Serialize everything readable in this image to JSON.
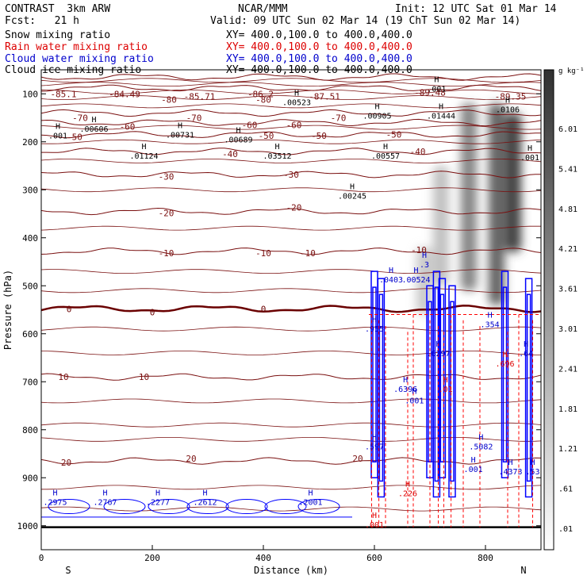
{
  "header": {
    "model": "CONTRAST  3km ARW",
    "org": "NCAR/MMM",
    "init": "Init: 12 UTC Sat 01 Mar 14",
    "fcst": "Fcst:   21 h",
    "valid": "Valid: 09 UTC Sun 02 Mar 14 (19 ChT Sun 02 Mar 14)",
    "fields": [
      {
        "name": "Snow mixing ratio",
        "xy": "XY= 400.0,100.0 to 400.0,400.0",
        "color": "#000000"
      },
      {
        "name": "Rain water mixing ratio",
        "xy": "XY= 400.0,100.0 to 400.0,400.0",
        "color": "#dd0000"
      },
      {
        "name": "Cloud water mixing ratio",
        "xy": "XY= 400.0,100.0 to 400.0,400.0",
        "color": "#0000cc"
      },
      {
        "name": "Cloud ice mixing ratio",
        "xy": "XY= 400.0,100.0 to 400.0,400.0",
        "color": "#000000"
      }
    ]
  },
  "chart_data": {
    "type": "heatmap",
    "xlabel": "Distance (km)",
    "ylabel": "Pressure (hPa)",
    "xlim": [
      0,
      900
    ],
    "ylim": [
      1050,
      50
    ],
    "x_ticks": [
      0,
      200,
      400,
      600,
      800
    ],
    "y_ticks": [
      100,
      200,
      300,
      400,
      500,
      600,
      700,
      800,
      900,
      1000
    ],
    "x_end_labels": {
      "left": "S",
      "right": "N"
    },
    "colorbar": {
      "unit": "g kg⁻¹",
      "ticks": [
        "6.01",
        "5.41",
        "4.81",
        "4.21",
        "3.61",
        "3.01",
        "2.41",
        "1.81",
        "1.21",
        ".61",
        ".01"
      ]
    },
    "temperature_contours": {
      "color": "#7a1010",
      "zero_color": "#6a0000",
      "levels": [
        {
          "t": -85,
          "p": 65
        },
        {
          "t": -80,
          "p": 88
        },
        {
          "t": -70,
          "p": 140
        },
        {
          "t": -60,
          "p": 160
        },
        {
          "t": -50,
          "p": 185
        },
        {
          "t": -40,
          "p": 220
        },
        {
          "t": -30,
          "p": 268
        },
        {
          "t": -20,
          "p": 345
        },
        {
          "t": -10,
          "p": 428
        },
        {
          "t": 0,
          "p": 548
        },
        {
          "t": 10,
          "p": 690
        },
        {
          "t": 20,
          "p": 865
        }
      ],
      "labels": [
        {
          "text": "-85.1",
          "x": 40,
          "p": 100
        },
        {
          "text": "-84.49",
          "x": 150,
          "p": 100
        },
        {
          "text": "-85.71",
          "x": 285,
          "p": 105
        },
        {
          "text": "-86.2",
          "x": 395,
          "p": 100
        },
        {
          "text": "-87.51",
          "x": 510,
          "p": 105
        },
        {
          "text": "-89.48",
          "x": 700,
          "p": 97
        },
        {
          "text": "-89.35",
          "x": 845,
          "p": 105
        },
        {
          "text": "-80",
          "x": 230,
          "p": 112
        },
        {
          "text": "-80",
          "x": 400,
          "p": 112
        },
        {
          "text": "-70",
          "x": 70,
          "p": 150
        },
        {
          "text": "-70",
          "x": 275,
          "p": 150
        },
        {
          "text": "-70",
          "x": 535,
          "p": 150
        },
        {
          "text": "-60",
          "x": 155,
          "p": 168
        },
        {
          "text": "-60",
          "x": 375,
          "p": 165
        },
        {
          "text": "-60",
          "x": 455,
          "p": 165
        },
        {
          "text": "-50",
          "x": 60,
          "p": 190
        },
        {
          "text": "-50",
          "x": 405,
          "p": 187
        },
        {
          "text": "-50",
          "x": 500,
          "p": 187
        },
        {
          "text": "-50",
          "x": 635,
          "p": 185
        },
        {
          "text": "-40",
          "x": 340,
          "p": 225
        },
        {
          "text": "-40",
          "x": 678,
          "p": 220
        },
        {
          "text": "-30",
          "x": 225,
          "p": 272
        },
        {
          "text": "-30",
          "x": 450,
          "p": 268
        },
        {
          "text": "-20",
          "x": 225,
          "p": 348
        },
        {
          "text": "-20",
          "x": 455,
          "p": 337
        },
        {
          "text": "-10",
          "x": 225,
          "p": 432
        },
        {
          "text": "-10",
          "x": 400,
          "p": 432
        },
        {
          "text": "-10",
          "x": 480,
          "p": 432
        },
        {
          "text": "-10",
          "x": 680,
          "p": 425
        },
        {
          "text": "0",
          "x": 50,
          "p": 548
        },
        {
          "text": "0",
          "x": 200,
          "p": 555
        },
        {
          "text": "0",
          "x": 400,
          "p": 548
        },
        {
          "text": "10",
          "x": 40,
          "p": 690
        },
        {
          "text": "10",
          "x": 185,
          "p": 690
        },
        {
          "text": "20",
          "x": 45,
          "p": 868
        },
        {
          "text": "20",
          "x": 270,
          "p": 860
        },
        {
          "text": "20",
          "x": 570,
          "p": 860
        }
      ]
    },
    "snow_ice_markers": [
      {
        "text": ".001",
        "x": 30,
        "p": 190
      },
      {
        "text": ".00606",
        "x": 95,
        "p": 176
      },
      {
        "text": ".01124",
        "x": 185,
        "p": 232
      },
      {
        "text": ".00731",
        "x": 250,
        "p": 188
      },
      {
        "text": ".00689",
        "x": 355,
        "p": 198
      },
      {
        "text": ".03512",
        "x": 425,
        "p": 232
      },
      {
        "text": ".00523",
        "x": 460,
        "p": 120
      },
      {
        "text": ".00245",
        "x": 560,
        "p": 315
      },
      {
        "text": ".00905",
        "x": 605,
        "p": 148
      },
      {
        "text": ".00557",
        "x": 620,
        "p": 232
      },
      {
        "text": ".01444",
        "x": 720,
        "p": 148
      },
      {
        "text": ".001",
        "x": 712,
        "p": 92
      },
      {
        "text": ".0106",
        "x": 840,
        "p": 135
      },
      {
        "text": ".001",
        "x": 880,
        "p": 235
      }
    ],
    "cloud_water_markers": [
      {
        "text": ".0403",
        "x": 630,
        "p": 490
      },
      {
        "text": ".00524",
        "x": 675,
        "p": 490
      },
      {
        "text": ".3",
        "x": 690,
        "p": 458
      },
      {
        "text": ".955",
        "x": 600,
        "p": 592
      },
      {
        "text": ".354",
        "x": 808,
        "p": 583
      },
      {
        "text": ".6297",
        "x": 715,
        "p": 643
      },
      {
        "text": ".64",
        "x": 873,
        "p": 643
      },
      {
        "text": ".6396",
        "x": 656,
        "p": 718
      },
      {
        "text": ".001",
        "x": 672,
        "p": 742
      },
      {
        "text": ".597",
        "x": 600,
        "p": 838
      },
      {
        "text": ".5082",
        "x": 792,
        "p": 838
      },
      {
        "text": ".001",
        "x": 778,
        "p": 885
      },
      {
        "text": ".4373",
        "x": 845,
        "p": 890
      },
      {
        "text": ".53",
        "x": 885,
        "p": 890
      },
      {
        "text": ".2975",
        "x": 25,
        "p": 953
      },
      {
        "text": ".2767",
        "x": 115,
        "p": 953
      },
      {
        "text": ".2277",
        "x": 210,
        "p": 953
      },
      {
        "text": ".2612",
        "x": 295,
        "p": 953
      },
      {
        "text": ".2001",
        "x": 485,
        "p": 953
      }
    ],
    "rain_markers": [
      {
        "text": ".01",
        "x": 728,
        "p": 718
      },
      {
        "text": ".696",
        "x": 835,
        "p": 665
      },
      {
        "text": ".226",
        "x": 660,
        "p": 935
      },
      {
        "text": ".001",
        "x": 600,
        "p": 1000
      }
    ],
    "snow_shading_bands": [
      {
        "x": 770,
        "p_top": 120,
        "p_bot": 510,
        "level": 3.6
      },
      {
        "x": 820,
        "p_top": 120,
        "p_bot": 540,
        "level": 4.8
      },
      {
        "x": 850,
        "p_top": 140,
        "p_bot": 430,
        "level": 6.0
      },
      {
        "x": 720,
        "p_top": 250,
        "p_bot": 500,
        "level": 1.5
      },
      {
        "x": 690,
        "p_top": 420,
        "p_bot": 560,
        "level": 1.2
      }
    ]
  }
}
